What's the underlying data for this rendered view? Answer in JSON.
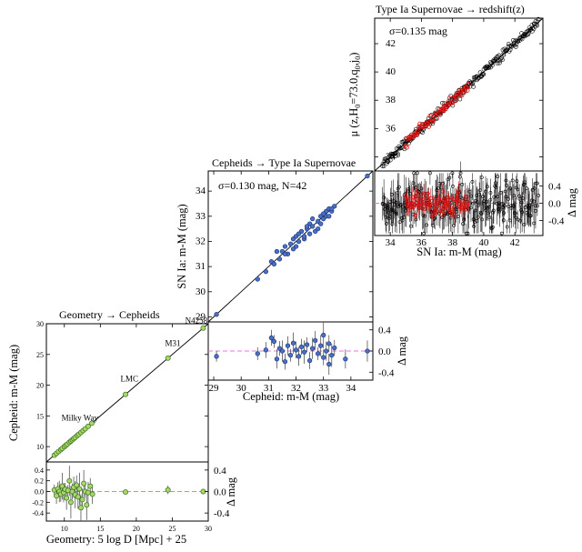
{
  "chart_data": [
    {
      "type": "scatter",
      "title": "Geometry → Cepheids",
      "xlabel": "Geometry: 5 log D [Mpc] + 25",
      "ylabel": "Cepheid: m-M (mag)",
      "resid_label": "Δ mag",
      "xlim": [
        7.5,
        30
      ],
      "ylim": [
        7.5,
        30
      ],
      "resid_ylim": [
        -0.55,
        0.55
      ],
      "xticks": [
        "10",
        "15",
        "20",
        "25",
        "30"
      ],
      "yticks": [
        "10",
        "15",
        "20",
        "25",
        "30"
      ],
      "resid_yticks": [
        "0.4",
        "0.0",
        "-0.4"
      ],
      "resid_yticks_left": [
        "0.4",
        "0.2",
        "0.0",
        "-0.2",
        "-0.4"
      ],
      "annotations": [
        {
          "text": "Milky Way",
          "x": 9.6,
          "y": 14.2
        },
        {
          "text": "LMC",
          "x": 17.8,
          "y": 20.6
        },
        {
          "text": "M31",
          "x": 24.0,
          "y": 26.4
        },
        {
          "text": "N4258",
          "x": 26.8,
          "y": 30.1
        }
      ],
      "points": [
        {
          "x": 8.6,
          "y": 8.6
        },
        {
          "x": 8.9,
          "y": 8.9
        },
        {
          "x": 9.2,
          "y": 9.2
        },
        {
          "x": 9.5,
          "y": 9.5
        },
        {
          "x": 9.7,
          "y": 9.7
        },
        {
          "x": 10.0,
          "y": 10.0
        },
        {
          "x": 10.2,
          "y": 10.2
        },
        {
          "x": 10.4,
          "y": 10.4
        },
        {
          "x": 10.7,
          "y": 10.7
        },
        {
          "x": 10.9,
          "y": 10.9
        },
        {
          "x": 11.1,
          "y": 11.1
        },
        {
          "x": 11.3,
          "y": 11.3
        },
        {
          "x": 11.5,
          "y": 11.5
        },
        {
          "x": 11.8,
          "y": 11.8
        },
        {
          "x": 12.0,
          "y": 12.0
        },
        {
          "x": 12.3,
          "y": 12.3
        },
        {
          "x": 12.6,
          "y": 12.6
        },
        {
          "x": 12.9,
          "y": 12.9
        },
        {
          "x": 13.3,
          "y": 13.3
        },
        {
          "x": 13.8,
          "y": 13.8
        },
        {
          "x": 18.5,
          "y": 18.5
        },
        {
          "x": 24.4,
          "y": 24.4
        },
        {
          "x": 29.3,
          "y": 29.3
        }
      ],
      "residuals": [
        {
          "x": 8.6,
          "y": 0.03,
          "err": 0.1
        },
        {
          "x": 8.9,
          "y": -0.08,
          "err": 0.15
        },
        {
          "x": 9.1,
          "y": 0.05,
          "err": 0.12
        },
        {
          "x": 9.3,
          "y": 0.0,
          "err": 0.2
        },
        {
          "x": 9.5,
          "y": -0.05,
          "err": 0.14
        },
        {
          "x": 9.7,
          "y": 0.1,
          "err": 0.25
        },
        {
          "x": 9.9,
          "y": -0.02,
          "err": 0.18
        },
        {
          "x": 10.1,
          "y": 0.04,
          "err": 0.12
        },
        {
          "x": 10.3,
          "y": -0.12,
          "err": 0.22
        },
        {
          "x": 10.5,
          "y": 0.02,
          "err": 0.1
        },
        {
          "x": 10.7,
          "y": 0.2,
          "err": 0.28
        },
        {
          "x": 10.9,
          "y": -0.2,
          "err": 0.3
        },
        {
          "x": 11.1,
          "y": 0.0,
          "err": 0.15
        },
        {
          "x": 11.3,
          "y": 0.08,
          "err": 0.2
        },
        {
          "x": 11.5,
          "y": -0.06,
          "err": 0.25
        },
        {
          "x": 11.7,
          "y": 0.12,
          "err": 0.18
        },
        {
          "x": 11.9,
          "y": -0.1,
          "err": 0.22
        },
        {
          "x": 12.1,
          "y": 0.05,
          "err": 0.3
        },
        {
          "x": 12.3,
          "y": -0.3,
          "err": 0.25
        },
        {
          "x": 12.5,
          "y": -0.15,
          "err": 0.2
        },
        {
          "x": 12.7,
          "y": 0.15,
          "err": 0.25
        },
        {
          "x": 12.9,
          "y": 0.0,
          "err": 0.12
        },
        {
          "x": 13.1,
          "y": -0.25,
          "err": 0.28
        },
        {
          "x": 13.3,
          "y": -0.02,
          "err": 0.2
        },
        {
          "x": 13.6,
          "y": 0.1,
          "err": 0.15
        },
        {
          "x": 13.9,
          "y": -0.05,
          "err": 0.18
        },
        {
          "x": 18.5,
          "y": -0.01,
          "err": 0.04
        },
        {
          "x": 24.4,
          "y": 0.03,
          "err": 0.08
        },
        {
          "x": 29.3,
          "y": 0.0,
          "err": 0.03
        }
      ]
    },
    {
      "type": "scatter",
      "title": "Cepheids → Type Ia Supernovae",
      "sigma_label": "σ=0.130 mag, N=42",
      "xlabel": "Cepheid: m-M (mag)",
      "ylabel": "SN Ia: m-M (mag)",
      "resid_label": "Δ mag",
      "xlim": [
        28.8,
        34.8
      ],
      "ylim": [
        28.8,
        34.8
      ],
      "resid_ylim": [
        -0.55,
        0.55
      ],
      "xticks": [
        "29",
        "30",
        "31",
        "32",
        "33",
        "34"
      ],
      "yticks": [
        "29",
        "30",
        "31",
        "32",
        "33",
        "34"
      ],
      "resid_yticks": [
        "0.4",
        "0.0",
        "-0.4"
      ],
      "points": [
        {
          "x": 29.1,
          "y": 29.1
        },
        {
          "x": 30.6,
          "y": 30.5
        },
        {
          "x": 30.9,
          "y": 30.8
        },
        {
          "x": 31.1,
          "y": 31.2
        },
        {
          "x": 31.2,
          "y": 31.1
        },
        {
          "x": 31.3,
          "y": 31.6
        },
        {
          "x": 31.4,
          "y": 31.3
        },
        {
          "x": 31.5,
          "y": 31.6
        },
        {
          "x": 31.6,
          "y": 31.8
        },
        {
          "x": 31.7,
          "y": 31.5
        },
        {
          "x": 31.8,
          "y": 31.9
        },
        {
          "x": 31.9,
          "y": 32.1
        },
        {
          "x": 32.0,
          "y": 31.8
        },
        {
          "x": 32.0,
          "y": 32.2
        },
        {
          "x": 32.1,
          "y": 32.0
        },
        {
          "x": 32.2,
          "y": 32.4
        },
        {
          "x": 32.3,
          "y": 32.1
        },
        {
          "x": 32.4,
          "y": 32.5
        },
        {
          "x": 32.5,
          "y": 32.3
        },
        {
          "x": 32.5,
          "y": 32.7
        },
        {
          "x": 32.6,
          "y": 32.6
        },
        {
          "x": 32.7,
          "y": 32.4
        },
        {
          "x": 32.8,
          "y": 32.8
        },
        {
          "x": 32.9,
          "y": 32.7
        },
        {
          "x": 32.9,
          "y": 33.0
        },
        {
          "x": 33.0,
          "y": 32.9
        },
        {
          "x": 33.1,
          "y": 33.2
        },
        {
          "x": 33.1,
          "y": 33.0
        },
        {
          "x": 33.2,
          "y": 33.3
        },
        {
          "x": 33.3,
          "y": 33.2
        },
        {
          "x": 33.4,
          "y": 33.4
        },
        {
          "x": 33.0,
          "y": 33.1
        },
        {
          "x": 32.8,
          "y": 32.5
        },
        {
          "x": 32.6,
          "y": 32.9
        },
        {
          "x": 32.3,
          "y": 32.2
        },
        {
          "x": 32.1,
          "y": 32.3
        },
        {
          "x": 31.9,
          "y": 31.7
        },
        {
          "x": 31.6,
          "y": 31.5
        },
        {
          "x": 33.2,
          "y": 33.0
        },
        {
          "x": 32.4,
          "y": 32.6
        },
        {
          "x": 33.3,
          "y": 33.3
        },
        {
          "x": 34.6,
          "y": 34.6
        }
      ],
      "residuals": [
        {
          "x": 29.1,
          "y": -0.1,
          "err": 0.1
        },
        {
          "x": 30.6,
          "y": -0.05,
          "err": 0.12
        },
        {
          "x": 30.9,
          "y": 0.02,
          "err": 0.15
        },
        {
          "x": 31.1,
          "y": 0.25,
          "err": 0.15
        },
        {
          "x": 31.2,
          "y": 0.18,
          "err": 0.12
        },
        {
          "x": 31.3,
          "y": -0.15,
          "err": 0.18
        },
        {
          "x": 31.4,
          "y": 0.05,
          "err": 0.14
        },
        {
          "x": 31.5,
          "y": 0.0,
          "err": 0.2
        },
        {
          "x": 31.6,
          "y": -0.2,
          "err": 0.15
        },
        {
          "x": 31.7,
          "y": 0.1,
          "err": 0.18
        },
        {
          "x": 31.8,
          "y": -0.08,
          "err": 0.12
        },
        {
          "x": 31.9,
          "y": 0.15,
          "err": 0.2
        },
        {
          "x": 32.0,
          "y": 0.02,
          "err": 0.16
        },
        {
          "x": 32.1,
          "y": -0.1,
          "err": 0.18
        },
        {
          "x": 32.2,
          "y": 0.08,
          "err": 0.15
        },
        {
          "x": 32.3,
          "y": -0.02,
          "err": 0.22
        },
        {
          "x": 32.4,
          "y": 0.12,
          "err": 0.14
        },
        {
          "x": 32.5,
          "y": -0.18,
          "err": 0.16
        },
        {
          "x": 32.6,
          "y": 0.05,
          "err": 0.2
        },
        {
          "x": 32.7,
          "y": 0.2,
          "err": 0.18
        },
        {
          "x": 32.8,
          "y": -0.05,
          "err": 0.12
        },
        {
          "x": 32.9,
          "y": 0.1,
          "err": 0.2
        },
        {
          "x": 33.0,
          "y": -0.12,
          "err": 0.15
        },
        {
          "x": 33.0,
          "y": 0.3,
          "err": 0.25
        },
        {
          "x": 33.1,
          "y": 0.0,
          "err": 0.18
        },
        {
          "x": 33.2,
          "y": -0.25,
          "err": 0.2
        },
        {
          "x": 33.2,
          "y": 0.14,
          "err": 0.16
        },
        {
          "x": 33.3,
          "y": -0.08,
          "err": 0.22
        },
        {
          "x": 33.4,
          "y": 0.06,
          "err": 0.15
        },
        {
          "x": 33.8,
          "y": -0.15,
          "err": 0.18
        },
        {
          "x": 34.6,
          "y": 0.0,
          "err": 0.2
        }
      ]
    },
    {
      "type": "scatter",
      "title": "Type Ia Supernovae → redshift(z)",
      "sigma_label": "σ=0.135 mag",
      "xlabel": "SN Ia: m-M (mag)",
      "ylabel_main": "μ (z,H",
      "ylabel_sub": "0",
      "ylabel_rest": "=73.0,q",
      "ylabel_sub2": "0",
      "ylabel_rest2": ",j",
      "ylabel_sub3": "0",
      "ylabel_end": ")",
      "resid_label": "Δ mag",
      "xlim": [
        33.0,
        43.8
      ],
      "ylim": [
        33.0,
        43.8
      ],
      "resid_ylim": [
        -0.75,
        0.75
      ],
      "xticks": [
        "34",
        "36",
        "38",
        "40",
        "42"
      ],
      "yticks": [
        "34",
        "36",
        "38",
        "40",
        "42"
      ],
      "resid_yticks": [
        "0.4",
        "0.0",
        "-0.4"
      ],
      "black_series": {
        "x_start": 33.5,
        "x_end": 43.5,
        "count": 260,
        "scatter": 0.16,
        "resid_scatter": 0.3
      },
      "red_series": {
        "x_start": 35.0,
        "x_end": 39.0,
        "count": 75,
        "scatter": 0.14,
        "resid_scatter": 0.15
      }
    }
  ]
}
